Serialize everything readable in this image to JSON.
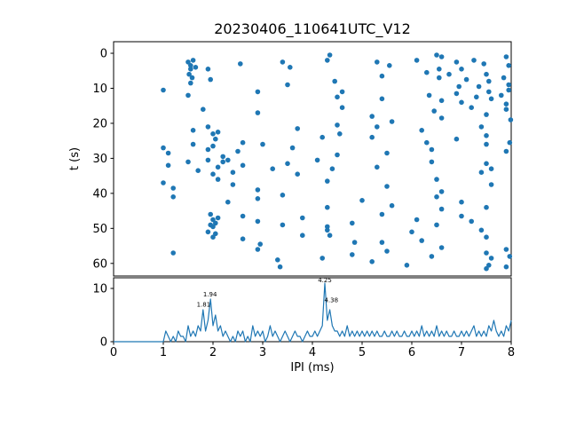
{
  "figure": {
    "title": "20230406_110641UTC_V12",
    "accent_color": "#1f77b4",
    "axis_color": "#000000",
    "background": "#ffffff"
  },
  "chart_data": [
    {
      "type": "scatter",
      "name": "ipi-vs-time-scatter",
      "title": "20230406_110641UTC_V12",
      "xlabel": "",
      "ylabel": "t (s)",
      "xlim": [
        0,
        8
      ],
      "ylim_inverted": [
        63.6,
        -3.3
      ],
      "yticks": [
        0,
        10,
        20,
        30,
        40,
        50,
        60
      ],
      "marker_color": "#1f77b4",
      "points": [
        [
          1.5,
          2.5
        ],
        [
          1.55,
          3.5
        ],
        [
          1.6,
          2.0
        ],
        [
          1.55,
          4.5
        ],
        [
          1.65,
          4.0
        ],
        [
          1.52,
          6.0
        ],
        [
          1.58,
          7.0
        ],
        [
          1.55,
          8.5
        ],
        [
          1.9,
          4.5
        ],
        [
          1.95,
          7.5
        ],
        [
          2.55,
          3.0
        ],
        [
          3.4,
          2.5
        ],
        [
          3.55,
          4.0
        ],
        [
          4.3,
          2.0
        ],
        [
          4.35,
          0.5
        ],
        [
          5.3,
          2.5
        ],
        [
          5.55,
          3.5
        ],
        [
          6.1,
          2.0
        ],
        [
          6.5,
          0.5
        ],
        [
          6.6,
          1.0
        ],
        [
          6.9,
          2.5
        ],
        [
          7.25,
          2.0
        ],
        [
          7.45,
          3.0
        ],
        [
          7.9,
          1.0
        ],
        [
          7.95,
          3.5
        ],
        [
          6.55,
          4.5
        ],
        [
          7.0,
          4.5
        ],
        [
          3.5,
          9.0
        ],
        [
          4.45,
          8.0
        ],
        [
          5.4,
          6.5
        ],
        [
          6.3,
          5.5
        ],
        [
          6.55,
          7.0
        ],
        [
          6.75,
          6.0
        ],
        [
          7.1,
          7.5
        ],
        [
          7.5,
          6.0
        ],
        [
          7.55,
          8.0
        ],
        [
          7.85,
          7.0
        ],
        [
          7.95,
          9.0
        ],
        [
          6.95,
          9.5
        ],
        [
          7.35,
          9.5
        ],
        [
          1.0,
          10.5
        ],
        [
          1.5,
          12.0
        ],
        [
          2.9,
          11.0
        ],
        [
          4.5,
          12.5
        ],
        [
          4.6,
          11.0
        ],
        [
          5.4,
          13.0
        ],
        [
          6.35,
          12.0
        ],
        [
          6.6,
          13.5
        ],
        [
          6.9,
          11.5
        ],
        [
          7.0,
          14.0
        ],
        [
          7.3,
          12.5
        ],
        [
          7.55,
          11.0
        ],
        [
          7.6,
          13.0
        ],
        [
          7.8,
          12.0
        ],
        [
          7.9,
          14.5
        ],
        [
          7.95,
          10.5
        ],
        [
          1.8,
          16.0
        ],
        [
          2.9,
          17.0
        ],
        [
          4.6,
          15.5
        ],
        [
          5.2,
          18.0
        ],
        [
          6.45,
          16.5
        ],
        [
          6.6,
          18.5
        ],
        [
          7.2,
          15.5
        ],
        [
          7.5,
          17.5
        ],
        [
          7.9,
          16.0
        ],
        [
          7.99,
          19.0
        ],
        [
          5.6,
          19.5
        ],
        [
          1.6,
          22.0
        ],
        [
          1.9,
          21.0
        ],
        [
          2.0,
          23.0
        ],
        [
          2.1,
          22.5
        ],
        [
          3.7,
          21.5
        ],
        [
          4.5,
          20.5
        ],
        [
          4.55,
          23.0
        ],
        [
          5.2,
          24.0
        ],
        [
          5.3,
          21.0
        ],
        [
          6.2,
          22.0
        ],
        [
          6.9,
          24.5
        ],
        [
          7.4,
          21.0
        ],
        [
          7.5,
          23.5
        ],
        [
          2.05,
          24.5
        ],
        [
          4.2,
          24.0
        ],
        [
          1.0,
          27.0
        ],
        [
          1.1,
          28.5
        ],
        [
          1.6,
          26.0
        ],
        [
          1.9,
          27.5
        ],
        [
          2.0,
          26.5
        ],
        [
          2.5,
          28.0
        ],
        [
          3.0,
          26.0
        ],
        [
          3.6,
          27.0
        ],
        [
          4.5,
          29.0
        ],
        [
          5.5,
          28.5
        ],
        [
          6.3,
          25.5
        ],
        [
          6.4,
          27.5
        ],
        [
          7.5,
          26.0
        ],
        [
          7.9,
          28.0
        ],
        [
          7.97,
          25.5
        ],
        [
          2.2,
          29.5
        ],
        [
          2.6,
          25.5
        ],
        [
          1.1,
          32.0
        ],
        [
          1.5,
          31.0
        ],
        [
          1.7,
          33.5
        ],
        [
          1.9,
          30.5
        ],
        [
          2.1,
          32.5
        ],
        [
          2.2,
          31.0
        ],
        [
          2.4,
          34.0
        ],
        [
          2.6,
          32.0
        ],
        [
          3.2,
          33.0
        ],
        [
          3.5,
          31.5
        ],
        [
          3.7,
          34.5
        ],
        [
          4.1,
          30.5
        ],
        [
          4.4,
          33.0
        ],
        [
          5.3,
          32.5
        ],
        [
          6.4,
          31.0
        ],
        [
          7.4,
          34.0
        ],
        [
          7.5,
          31.5
        ],
        [
          7.6,
          33.0
        ],
        [
          2.0,
          34.5
        ],
        [
          2.3,
          30.5
        ],
        [
          1.0,
          37.0
        ],
        [
          1.2,
          38.5
        ],
        [
          2.1,
          36.0
        ],
        [
          2.4,
          37.5
        ],
        [
          4.3,
          36.5
        ],
        [
          5.5,
          38.0
        ],
        [
          6.5,
          36.0
        ],
        [
          7.6,
          37.5
        ],
        [
          2.9,
          39.0
        ],
        [
          6.6,
          39.5
        ],
        [
          1.2,
          41.0
        ],
        [
          2.3,
          42.5
        ],
        [
          2.9,
          41.5
        ],
        [
          4.3,
          44.0
        ],
        [
          5.0,
          42.0
        ],
        [
          5.6,
          43.5
        ],
        [
          6.5,
          41.0
        ],
        [
          6.6,
          44.5
        ],
        [
          7.0,
          42.5
        ],
        [
          7.5,
          44.0
        ],
        [
          3.4,
          40.5
        ],
        [
          1.95,
          46.0
        ],
        [
          2.0,
          47.5
        ],
        [
          2.05,
          48.5
        ],
        [
          2.1,
          47.0
        ],
        [
          2.0,
          49.5
        ],
        [
          1.95,
          49.0
        ],
        [
          2.6,
          46.5
        ],
        [
          2.9,
          48.0
        ],
        [
          3.4,
          49.0
        ],
        [
          3.8,
          47.0
        ],
        [
          4.8,
          48.5
        ],
        [
          5.4,
          46.0
        ],
        [
          6.5,
          49.0
        ],
        [
          7.0,
          46.5
        ],
        [
          7.2,
          48.0
        ],
        [
          4.3,
          49.5
        ],
        [
          6.1,
          47.5
        ],
        [
          1.9,
          51.0
        ],
        [
          2.0,
          52.5
        ],
        [
          2.05,
          51.5
        ],
        [
          2.6,
          53.0
        ],
        [
          3.8,
          52.0
        ],
        [
          4.3,
          50.5
        ],
        [
          4.35,
          52.0
        ],
        [
          5.4,
          54.0
        ],
        [
          6.0,
          51.0
        ],
        [
          6.2,
          53.5
        ],
        [
          7.4,
          50.5
        ],
        [
          7.5,
          52.5
        ],
        [
          2.95,
          54.5
        ],
        [
          4.85,
          54.0
        ],
        [
          1.2,
          57.0
        ],
        [
          2.9,
          56.0
        ],
        [
          4.2,
          58.5
        ],
        [
          4.8,
          57.5
        ],
        [
          5.5,
          56.5
        ],
        [
          6.4,
          58.0
        ],
        [
          6.6,
          55.5
        ],
        [
          7.5,
          57.0
        ],
        [
          7.6,
          58.5
        ],
        [
          7.9,
          56.0
        ],
        [
          5.2,
          59.5
        ],
        [
          3.3,
          59.0
        ],
        [
          3.35,
          61.0
        ],
        [
          5.9,
          60.5
        ],
        [
          7.5,
          61.5
        ],
        [
          7.55,
          60.5
        ],
        [
          7.9,
          61.0
        ],
        [
          7.97,
          58.0
        ]
      ]
    },
    {
      "type": "line",
      "name": "ipi-count-histogram",
      "xlabel": "IPI (ms)",
      "ylabel": "",
      "xlim": [
        0,
        8
      ],
      "ylim": [
        0,
        12
      ],
      "yticks": [
        0,
        10
      ],
      "xticks": [
        0,
        1,
        2,
        3,
        4,
        5,
        6,
        7,
        8
      ],
      "line_color": "#1f77b4",
      "x_start": 0,
      "dx": 0.05,
      "values": [
        0,
        0,
        0,
        0,
        0,
        0,
        0,
        0,
        0,
        0,
        0,
        0,
        0,
        0,
        0,
        0,
        0,
        0,
        0,
        0,
        0,
        2,
        1,
        0,
        1,
        0,
        2,
        1,
        1,
        0,
        3,
        1,
        2,
        1,
        3,
        2,
        6,
        2,
        4,
        8,
        3,
        5,
        2,
        3,
        1,
        2,
        1,
        0,
        1,
        0,
        2,
        1,
        2,
        0,
        1,
        0,
        3,
        1,
        2,
        1,
        2,
        0,
        1,
        3,
        1,
        2,
        1,
        0,
        1,
        2,
        1,
        0,
        1,
        2,
        1,
        1,
        0,
        1,
        2,
        1,
        1,
        2,
        1,
        2,
        3,
        11,
        4,
        6,
        3,
        2,
        2,
        1,
        2,
        1,
        3,
        1,
        2,
        1,
        2,
        1,
        2,
        1,
        2,
        1,
        2,
        1,
        2,
        1,
        1,
        2,
        1,
        1,
        2,
        1,
        2,
        1,
        1,
        2,
        1,
        1,
        2,
        1,
        2,
        1,
        3,
        1,
        2,
        1,
        2,
        1,
        3,
        1,
        2,
        1,
        2,
        1,
        1,
        2,
        1,
        1,
        2,
        1,
        2,
        1,
        2,
        3,
        1,
        2,
        1,
        2,
        1,
        3,
        2,
        4,
        2,
        1,
        2,
        1,
        3,
        2,
        4
      ],
      "annotations": [
        {
          "x": 1.81,
          "y": 6.6,
          "label": "1.81"
        },
        {
          "x": 1.94,
          "y": 8.5,
          "label": "1.94"
        },
        {
          "x": 4.25,
          "y": 11.2,
          "label": "4.25"
        },
        {
          "x": 4.38,
          "y": 7.4,
          "label": "4.38"
        }
      ]
    }
  ]
}
